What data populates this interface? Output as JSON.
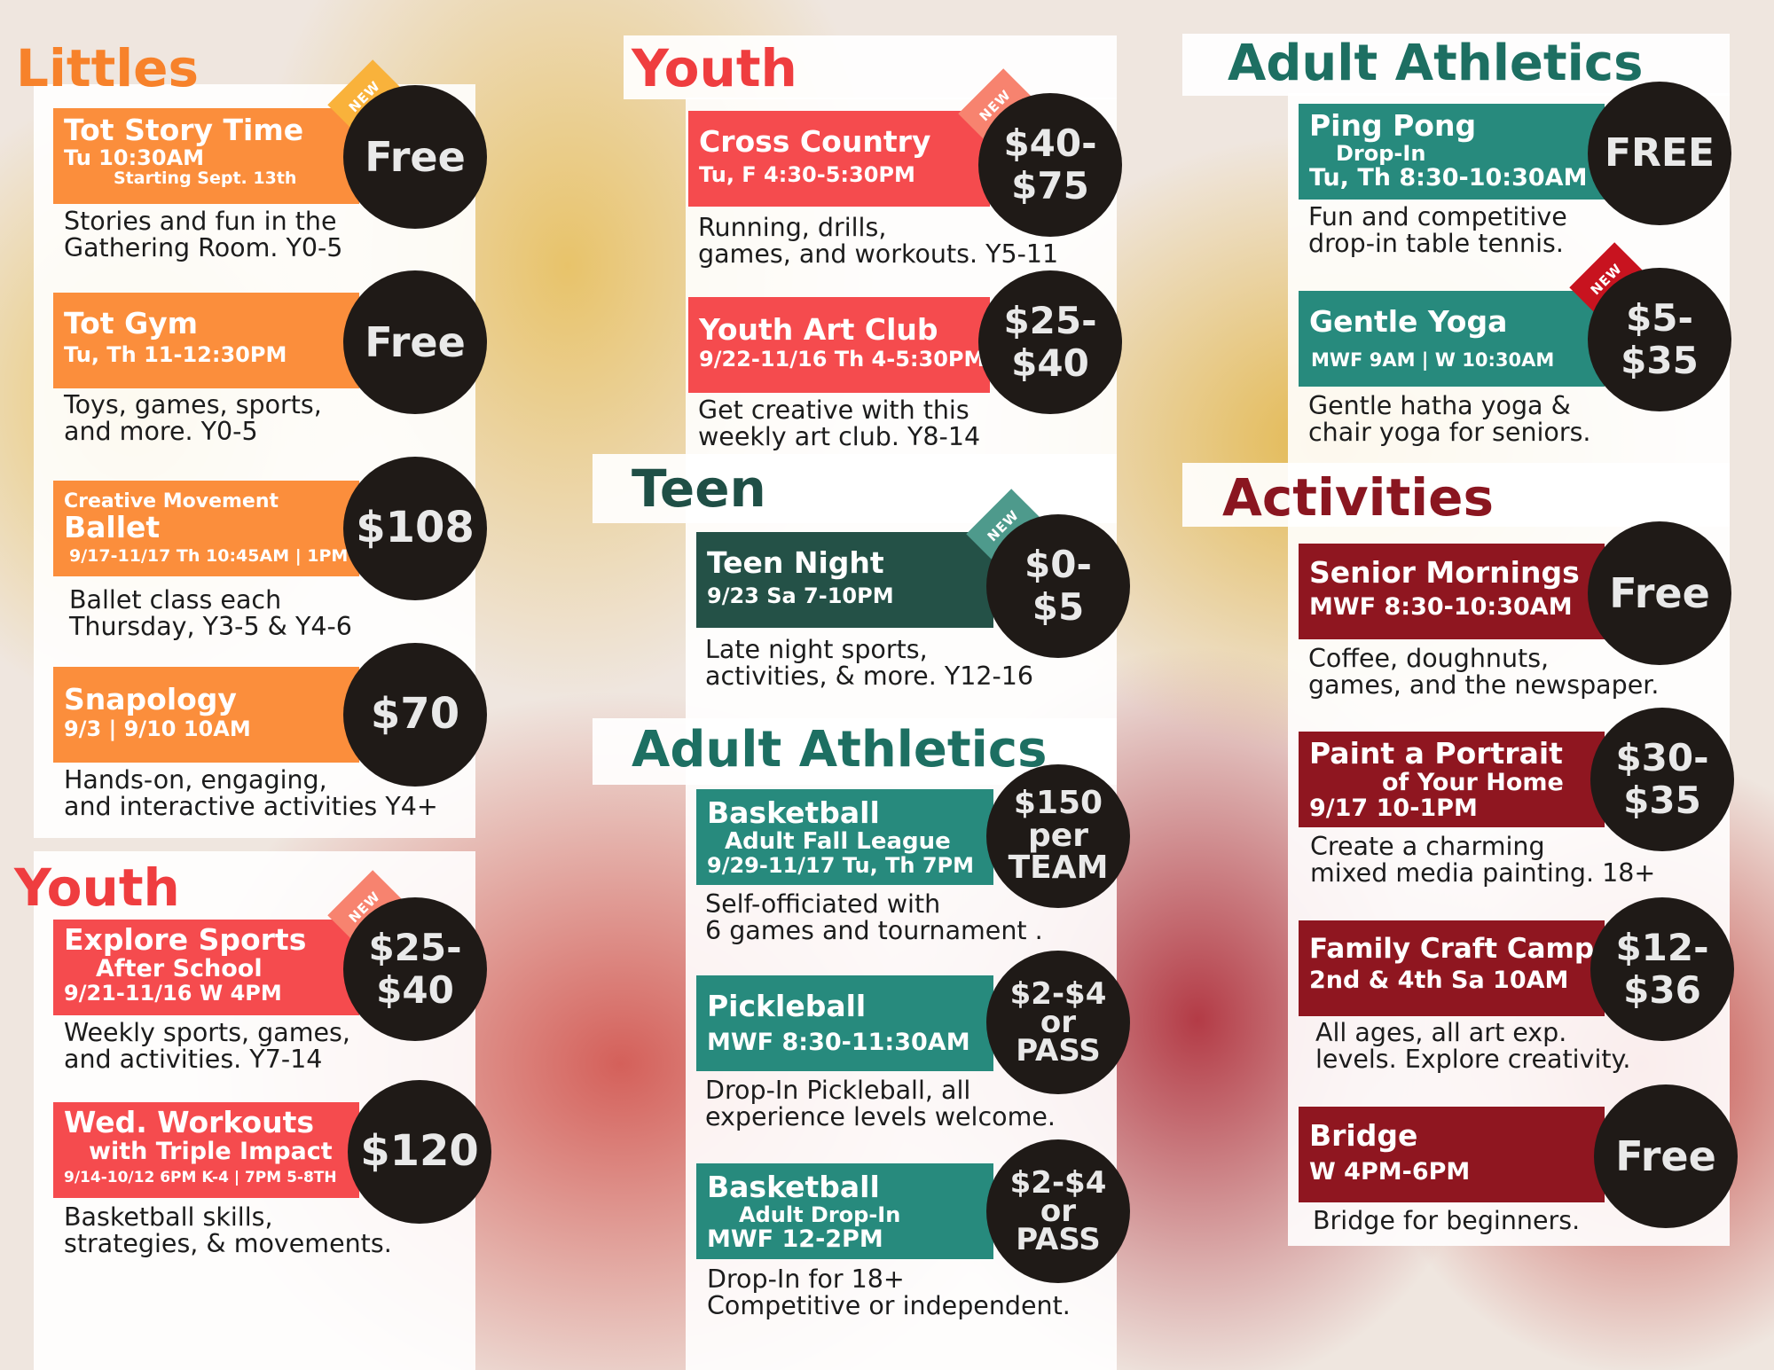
{
  "colors": {
    "orange": "#fb8e3c",
    "red": "#f54b4e",
    "teal_dark": "#245147",
    "teal": "#278a7d",
    "maroon": "#8f1620",
    "heading_orange": "#f7822b",
    "heading_red": "#ef3d3f",
    "heading_teal": "#1d6f62",
    "heading_dark": "#1f4f46",
    "heading_maroon": "#8a1620",
    "circle": "#1f1a17"
  },
  "headings": {
    "littles": "Littles",
    "youth_left": "Youth",
    "youth_mid": "Youth",
    "teen": "Teen",
    "adult_mid": "Adult Athletics",
    "adult_right": "Adult Athletics",
    "activities": "Activities"
  },
  "new_label": "NEW",
  "programs": {
    "tot_story": {
      "title": "Tot Story Time",
      "line1": "Tu 10:30AM",
      "line2": "Starting Sept. 13th",
      "price": "Free",
      "desc": "Stories and fun in the\nGathering Room. Y0-5"
    },
    "tot_gym": {
      "title": "Tot Gym",
      "line1": "Tu, Th 11-12:30PM",
      "price": "Free",
      "desc": "Toys, games, sports,\nand more. Y0-5"
    },
    "ballet": {
      "pre": "Creative Movement",
      "title": "Ballet",
      "line1": "9/17-11/17 Th 10:45AM | 1PM",
      "price": "$108",
      "desc": "Ballet class each\nThursday, Y3-5 & Y4-6"
    },
    "snapology": {
      "title": "Snapology",
      "line1": "9/3 | 9/10 10AM",
      "price": "$70",
      "desc": "Hands-on, engaging,\nand interactive activities Y4+"
    },
    "explore": {
      "title": "Explore Sports",
      "line1": "After School",
      "line2": "9/21-11/16 W 4PM",
      "price": "$25-\n$40",
      "desc": "Weekly sports, games,\nand activities. Y7-14"
    },
    "workouts": {
      "title": "Wed. Workouts",
      "line1": "with Triple Impact",
      "line2": "9/14-10/12 6PM K-4 | 7PM 5-8TH",
      "price": "$120",
      "desc": "Basketball skills,\nstrategies, & movements."
    },
    "cross": {
      "title": "Cross Country",
      "line1": "Tu, F 4:30-5:30PM",
      "price": "$40-\n$75",
      "desc": "Running, drills,\ngames, and workouts. Y5-11"
    },
    "art": {
      "title": "Youth Art Club",
      "line1": "9/22-11/16 Th 4-5:30PM",
      "price": "$25-\n$40",
      "desc": "Get creative with this\nweekly art club. Y8-14"
    },
    "teen_night": {
      "title": "Teen Night",
      "line1": "9/23 Sa 7-10PM",
      "price": "$0-\n$5",
      "desc": "Late night sports,\nactivities, & more. Y12-16"
    },
    "bball_league": {
      "title": "Basketball",
      "line1": "Adult Fall League",
      "line2": "9/29-11/17 Tu, Th 7PM",
      "price": "$150\nper\nTEAM",
      "desc": "Self-officiated with\n6 games and tournament ."
    },
    "pickleball": {
      "title": "Pickleball",
      "line1": "MWF 8:30-11:30AM",
      "price": "$2-$4\nor\nPASS",
      "desc": "Drop-In Pickleball, all\nexperience levels welcome."
    },
    "bball_dropin": {
      "title": "Basketball",
      "line1": "Adult Drop-In",
      "line2": "MWF  12-2PM",
      "price": "$2-$4\nor\nPASS",
      "desc": "Drop-In for 18+\nCompetitive or independent."
    },
    "ping_pong": {
      "title": "Ping Pong",
      "line1": "Drop-In",
      "line2": "Tu, Th 8:30-10:30AM",
      "price": "FREE",
      "desc": "Fun and competitive\ndrop-in table tennis."
    },
    "yoga": {
      "title": "Gentle Yoga",
      "line1": "MWF 9AM | W 10:30AM",
      "price": "$5-\n$35",
      "desc": "Gentle hatha yoga &\nchair yoga for seniors."
    },
    "senior": {
      "title": "Senior Mornings",
      "line1": "MWF 8:30-10:30AM",
      "price": "Free",
      "desc": "Coffee, doughnuts,\ngames, and the newspaper."
    },
    "portrait": {
      "title": "Paint a Portrait",
      "line1": "of Your Home",
      "line2": "9/17 10-1PM",
      "price": "$30-\n$35",
      "desc": "Create a charming\nmixed media painting. 18+"
    },
    "craft": {
      "title": "Family Craft Camp",
      "line1": "2nd & 4th Sa 10AM",
      "price": "$12-\n$36",
      "desc": "All ages, all art exp.\nlevels. Explore creativity."
    },
    "bridge": {
      "title": "Bridge",
      "line1": "W 4PM-6PM",
      "price": "Free",
      "desc": "Bridge for beginners."
    }
  }
}
